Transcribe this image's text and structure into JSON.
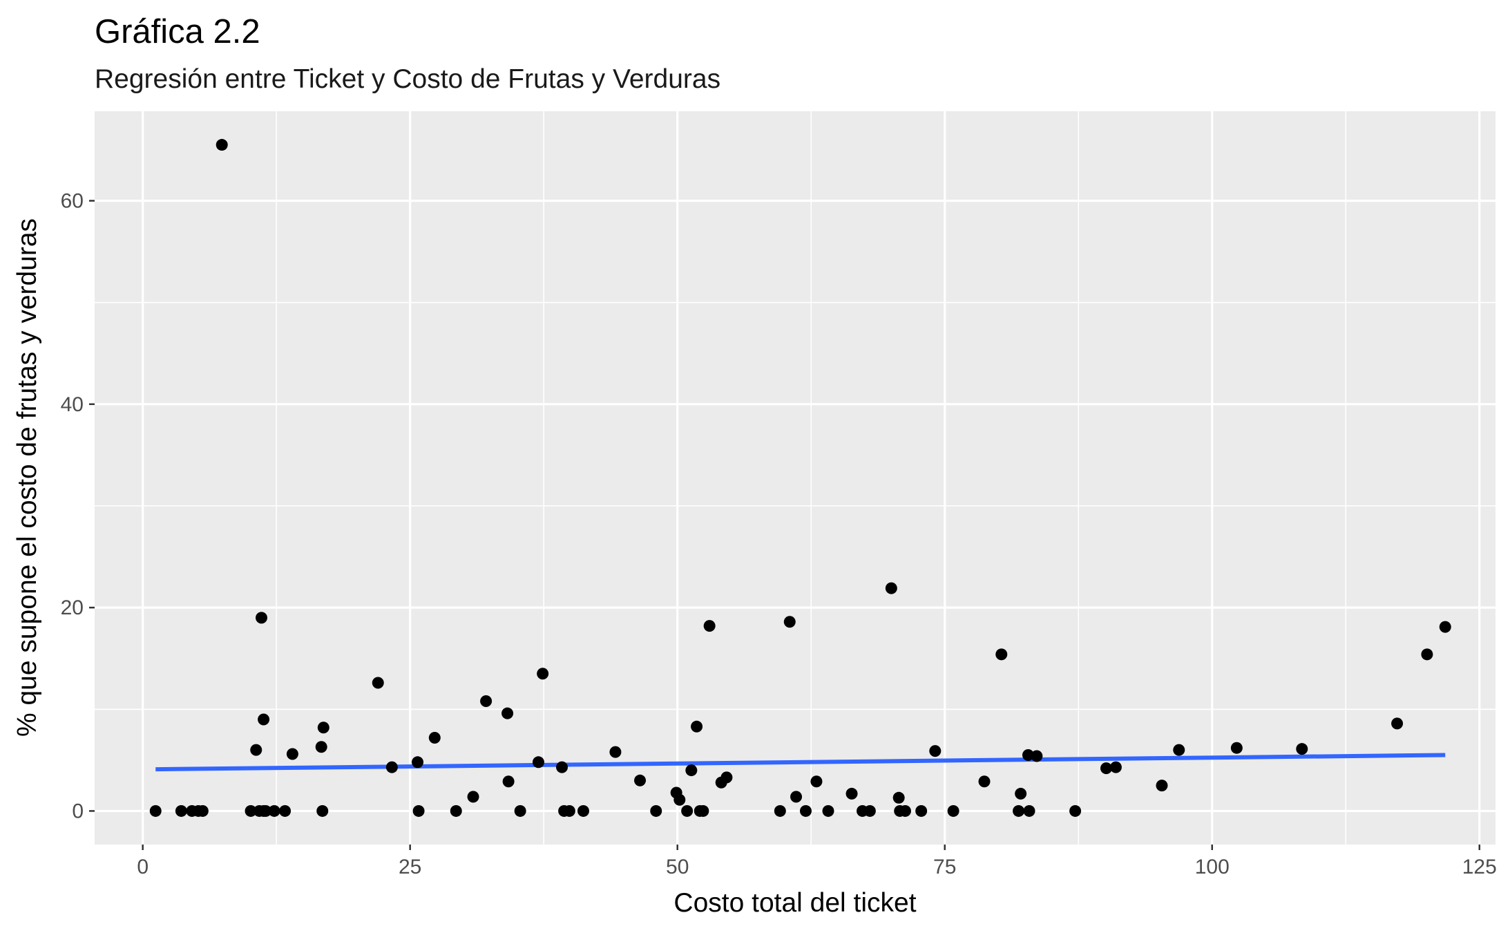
{
  "chart_data": {
    "type": "scatter",
    "title": "Gráfica 2.2",
    "subtitle": "Regresión entre Ticket y Costo de Frutas y Verduras",
    "xlabel": "Costo total del ticket",
    "ylabel": "% que supone el costo de frutas y verduras",
    "xlim": [
      -4.5,
      126.5
    ],
    "ylim": [
      -3.3,
      68.8
    ],
    "x_ticks": [
      0,
      25,
      50,
      75,
      100,
      125
    ],
    "x_tick_labels": [
      "0",
      "25",
      "50",
      "75",
      "100",
      "125"
    ],
    "y_ticks": [
      0,
      20,
      40,
      60
    ],
    "y_tick_labels": [
      "0",
      "20",
      "40",
      "60"
    ],
    "grid": true,
    "point_color": "#000000",
    "line_color": "#3366FF",
    "panel_color": "#EBEBEB",
    "regression_line": {
      "x": [
        1.2,
        121.8
      ],
      "y": [
        4.1,
        5.5
      ]
    },
    "points": [
      [
        1.2,
        0
      ],
      [
        3.6,
        0
      ],
      [
        4.6,
        0
      ],
      [
        5.2,
        0
      ],
      [
        5.6,
        0
      ],
      [
        7.4,
        65.5
      ],
      [
        10.1,
        0
      ],
      [
        10.6,
        6.0
      ],
      [
        10.9,
        0
      ],
      [
        11.1,
        19.0
      ],
      [
        11.3,
        0
      ],
      [
        11.3,
        9.0
      ],
      [
        11.5,
        0
      ],
      [
        12.3,
        0
      ],
      [
        13.3,
        0
      ],
      [
        14.0,
        5.6
      ],
      [
        16.7,
        6.3
      ],
      [
        16.8,
        0
      ],
      [
        16.9,
        8.2
      ],
      [
        22.0,
        12.6
      ],
      [
        23.3,
        4.3
      ],
      [
        25.7,
        4.8
      ],
      [
        25.8,
        0
      ],
      [
        27.3,
        7.2
      ],
      [
        29.3,
        0
      ],
      [
        30.9,
        1.4
      ],
      [
        32.1,
        10.8
      ],
      [
        34.1,
        9.6
      ],
      [
        34.2,
        2.9
      ],
      [
        35.3,
        0
      ],
      [
        37.0,
        4.8
      ],
      [
        37.4,
        13.5
      ],
      [
        39.2,
        4.3
      ],
      [
        39.4,
        0
      ],
      [
        39.9,
        0
      ],
      [
        41.2,
        0
      ],
      [
        44.2,
        5.8
      ],
      [
        46.5,
        3.0
      ],
      [
        48.0,
        0
      ],
      [
        49.9,
        1.8
      ],
      [
        50.2,
        1.1
      ],
      [
        50.9,
        0
      ],
      [
        51.3,
        4.0
      ],
      [
        51.8,
        8.3
      ],
      [
        52.1,
        0
      ],
      [
        52.4,
        0
      ],
      [
        53.0,
        18.2
      ],
      [
        54.1,
        2.8
      ],
      [
        54.6,
        3.3
      ],
      [
        59.6,
        0
      ],
      [
        60.5,
        18.6
      ],
      [
        61.1,
        1.4
      ],
      [
        62.0,
        0
      ],
      [
        63.0,
        2.9
      ],
      [
        64.1,
        0
      ],
      [
        66.3,
        1.7
      ],
      [
        67.3,
        0
      ],
      [
        68.0,
        0
      ],
      [
        70.0,
        21.9
      ],
      [
        70.7,
        1.3
      ],
      [
        70.8,
        0
      ],
      [
        71.3,
        0
      ],
      [
        72.8,
        0
      ],
      [
        74.1,
        5.9
      ],
      [
        75.8,
        0
      ],
      [
        78.7,
        2.9
      ],
      [
        80.3,
        15.4
      ],
      [
        81.9,
        0
      ],
      [
        82.1,
        1.7
      ],
      [
        82.8,
        5.5
      ],
      [
        82.9,
        0
      ],
      [
        83.6,
        5.4
      ],
      [
        87.2,
        0
      ],
      [
        90.1,
        4.2
      ],
      [
        91.0,
        4.3
      ],
      [
        95.3,
        2.5
      ],
      [
        96.9,
        6.0
      ],
      [
        102.3,
        6.2
      ],
      [
        108.4,
        6.1
      ],
      [
        117.3,
        8.6
      ],
      [
        120.1,
        15.4
      ],
      [
        121.8,
        18.1
      ]
    ]
  }
}
